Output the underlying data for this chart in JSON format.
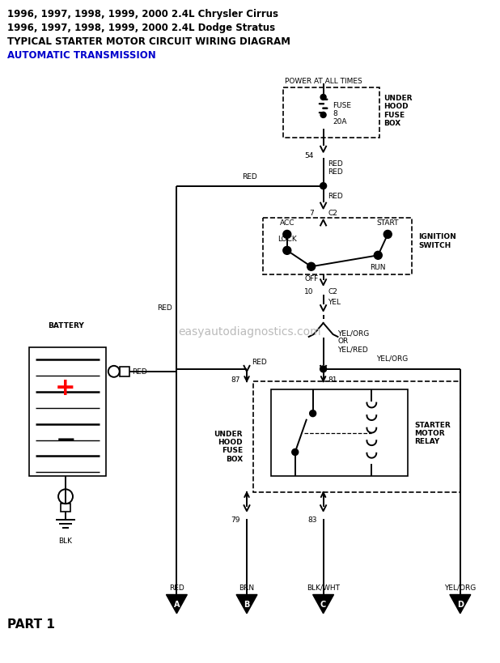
{
  "title_lines": [
    "1996, 1997, 1998, 1999, 2000 2.4L Chrysler Cirrus",
    "1996, 1997, 1998, 1999, 2000 2.4L Dodge Stratus",
    "TYPICAL STARTER MOTOR CIRCUIT WIRING DIAGRAM"
  ],
  "subtitle": "AUTOMATIC TRANSMISSION",
  "watermark": "easyautodiagnostics.com",
  "bg_color": "#ffffff",
  "line_color": "#000000",
  "title_color": "#000000",
  "subtitle_color": "#0000cc",
  "part_label": "PART 1",
  "connectors": [
    "A",
    "B",
    "C",
    "D"
  ],
  "connector_wire_labels": [
    "RED",
    "BRN",
    "BLK/WHT",
    "YEL/ORG"
  ],
  "fuse_label1": "FUSE",
  "fuse_label2": "8",
  "fuse_label3": "20A"
}
